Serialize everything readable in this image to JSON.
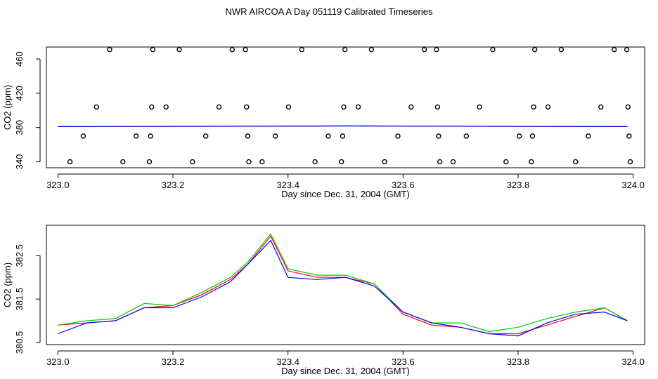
{
  "title": "NWR AIRCOA A  Day 051119  Calibrated Timeseries",
  "colors": {
    "red": "#ff0000",
    "green": "#00cc00",
    "blue": "#0000ff",
    "axis": "#000000"
  },
  "chart_data": [
    {
      "type": "scatter",
      "xlabel": "Day since Dec. 31, 2004 (GMT)",
      "ylabel": "CO2 (ppm)",
      "xlim": [
        322.98,
        324.02
      ],
      "ylim": [
        333,
        474
      ],
      "xticks": [
        "323.0",
        "323.2",
        "323.4",
        "323.6",
        "323.8",
        "324.0"
      ],
      "yticks": [
        "340",
        "380",
        "420",
        "460"
      ],
      "grid": false,
      "points": [
        [
          323.021,
          340
        ],
        [
          323.044,
          370
        ],
        [
          323.067,
          404
        ],
        [
          323.09,
          471
        ],
        [
          323.113,
          340
        ],
        [
          323.136,
          370
        ],
        [
          323.159,
          340
        ],
        [
          323.161,
          370
        ],
        [
          323.163,
          404
        ],
        [
          323.165,
          471
        ],
        [
          323.188,
          404
        ],
        [
          323.211,
          471
        ],
        [
          323.234,
          340
        ],
        [
          323.257,
          370
        ],
        [
          323.28,
          404
        ],
        [
          323.303,
          471
        ],
        [
          323.326,
          471
        ],
        [
          323.328,
          404
        ],
        [
          323.33,
          370
        ],
        [
          323.332,
          340
        ],
        [
          323.355,
          340
        ],
        [
          323.378,
          370
        ],
        [
          323.401,
          404
        ],
        [
          323.424,
          471
        ],
        [
          323.447,
          340
        ],
        [
          323.47,
          370
        ],
        [
          323.493,
          340
        ],
        [
          323.495,
          370
        ],
        [
          323.497,
          404
        ],
        [
          323.499,
          471
        ],
        [
          323.522,
          404
        ],
        [
          323.545,
          471
        ],
        [
          323.568,
          340
        ],
        [
          323.591,
          370
        ],
        [
          323.614,
          404
        ],
        [
          323.637,
          471
        ],
        [
          323.658,
          471
        ],
        [
          323.66,
          404
        ],
        [
          323.662,
          370
        ],
        [
          323.664,
          340
        ],
        [
          323.687,
          340
        ],
        [
          323.71,
          370
        ],
        [
          323.733,
          404
        ],
        [
          323.756,
          471
        ],
        [
          323.779,
          340
        ],
        [
          323.802,
          370
        ],
        [
          323.823,
          340
        ],
        [
          323.825,
          370
        ],
        [
          323.827,
          404
        ],
        [
          323.829,
          471
        ],
        [
          323.852,
          404
        ],
        [
          323.875,
          471
        ],
        [
          323.9,
          340
        ],
        [
          323.922,
          370
        ],
        [
          323.944,
          404
        ],
        [
          323.967,
          471
        ],
        [
          323.989,
          471
        ],
        [
          323.991,
          404
        ],
        [
          323.993,
          370
        ],
        [
          323.995,
          340
        ]
      ],
      "series": [
        {
          "color": "#ff0000",
          "x": [
            323.0,
            323.5,
            323.99
          ],
          "values": [
            381.0,
            381.8,
            381.0
          ]
        },
        {
          "color": "#00cc00",
          "x": [
            323.0,
            323.5,
            323.99
          ],
          "values": [
            381.0,
            381.9,
            381.0
          ]
        },
        {
          "color": "#0000ff",
          "x": [
            323.0,
            323.5,
            323.99
          ],
          "values": [
            381.0,
            381.8,
            381.0
          ]
        }
      ]
    },
    {
      "type": "line",
      "xlabel": "Day since Dec. 31, 2004 (GMT)",
      "ylabel": "CO2 (ppm)",
      "xlim": [
        322.98,
        324.02
      ],
      "ylim": [
        380.45,
        383.2
      ],
      "xticks": [
        "323.0",
        "323.2",
        "323.4",
        "323.6",
        "323.8",
        "324.0"
      ],
      "yticks": [
        "380.5",
        "381.5",
        "382.5"
      ],
      "grid": false,
      "x": [
        323.0,
        323.05,
        323.1,
        323.15,
        323.2,
        323.25,
        323.3,
        323.33,
        323.37,
        323.4,
        323.45,
        323.5,
        323.55,
        323.6,
        323.65,
        323.7,
        323.75,
        323.8,
        323.85,
        323.9,
        323.95,
        323.99
      ],
      "series": [
        {
          "color": "#ff0000",
          "values": [
            380.9,
            380.95,
            381.0,
            381.3,
            381.35,
            381.6,
            381.95,
            382.3,
            382.95,
            382.15,
            382.0,
            382.0,
            381.85,
            381.15,
            380.9,
            380.85,
            380.7,
            380.7,
            380.9,
            381.1,
            381.3,
            381.0
          ]
        },
        {
          "color": "#00cc00",
          "values": [
            380.9,
            381.0,
            381.05,
            381.4,
            381.35,
            381.65,
            382.0,
            382.35,
            383.0,
            382.2,
            382.05,
            382.05,
            381.85,
            381.2,
            380.95,
            380.95,
            380.75,
            380.85,
            381.05,
            381.2,
            381.3,
            381.0
          ]
        },
        {
          "color": "#0000ff",
          "values": [
            380.7,
            380.95,
            381.0,
            381.3,
            381.3,
            381.55,
            381.9,
            382.3,
            382.85,
            382.0,
            381.95,
            382.0,
            381.8,
            381.2,
            380.95,
            380.85,
            380.7,
            380.65,
            380.95,
            381.15,
            381.2,
            381.0
          ]
        }
      ]
    }
  ]
}
